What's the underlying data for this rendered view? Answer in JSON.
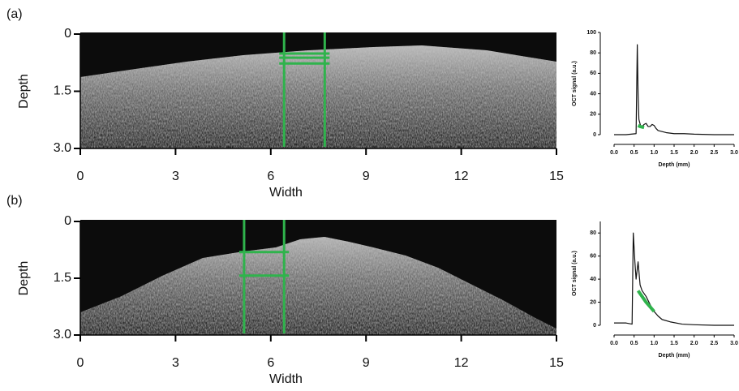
{
  "chart_data": [
    {
      "type": "image",
      "panel_label": "(a)",
      "xlabel": "Width",
      "ylabel": "Depth",
      "xlim": [
        0,
        15
      ],
      "xticks": [
        0,
        3,
        6,
        9,
        12,
        15
      ],
      "ylim": [
        0,
        3
      ],
      "y_inverted": true,
      "yticks": [
        0,
        1.5,
        {
          "value": 3,
          "label": "3.0"
        }
      ],
      "line_color": "#2fb34c",
      "vertical_lines": [
        6.42,
        7.7
      ],
      "horizontal_lines": [
        0.51,
        0.62,
        0.77
      ]
    },
    {
      "type": "line",
      "xlabel": "Depth (mm)",
      "ylabel": "OCT signal (a.u.)",
      "xlim": [
        0,
        3
      ],
      "xticks": [
        {
          "value": 0,
          "label": "0.0"
        },
        0.5,
        {
          "value": 1,
          "label": "1.0"
        },
        1.5,
        {
          "value": 2,
          "label": "2.0"
        },
        2.5,
        {
          "value": 3,
          "label": "3.0"
        }
      ],
      "ylim": [
        0,
        100
      ],
      "yticks": [
        0,
        20,
        40,
        60,
        80,
        100
      ],
      "series": [
        {
          "color": "#111111",
          "x": [
            0,
            0.3,
            0.55,
            0.58,
            0.6,
            0.62,
            0.66,
            0.7,
            0.75,
            0.8,
            0.85,
            0.9,
            0.95,
            1.0,
            1.05,
            1.1,
            1.2,
            1.3,
            1.5,
            1.75,
            2.0,
            2.5,
            3.0
          ],
          "values": [
            0,
            0,
            1,
            88,
            40,
            15,
            9,
            8,
            10,
            11,
            8,
            8,
            10,
            9,
            6,
            4,
            3,
            2,
            1,
            1,
            0.5,
            0,
            0
          ]
        },
        {
          "color": "#2fb34c",
          "x": [
            0.6,
            0.65,
            0.7,
            0.75
          ],
          "values": [
            9,
            8,
            7.5,
            7
          ]
        }
      ]
    },
    {
      "type": "image",
      "panel_label": "(b)",
      "xlabel": "Width",
      "ylabel": "Depth",
      "xlim": [
        0,
        15
      ],
      "xticks": [
        0,
        3,
        6,
        9,
        12,
        15
      ],
      "ylim": [
        0,
        3
      ],
      "y_inverted": true,
      "yticks": [
        0,
        1.5,
        {
          "value": 3,
          "label": "3.0"
        }
      ],
      "line_color": "#2fb34c",
      "vertical_lines": [
        5.16,
        6.42
      ],
      "horizontal_lines": [
        0.81,
        1.43
      ]
    },
    {
      "type": "line",
      "xlabel": "Depth (mm)",
      "ylabel": "OCT signal (a.u.)",
      "xlim": [
        0,
        3
      ],
      "xticks": [
        {
          "value": 0,
          "label": "0.0"
        },
        0.5,
        {
          "value": 1,
          "label": "1.0"
        },
        1.5,
        {
          "value": 2,
          "label": "2.0"
        },
        2.5,
        {
          "value": 3,
          "label": "3.0"
        }
      ],
      "ylim": [
        0,
        90
      ],
      "yticks": [
        0,
        20,
        40,
        60,
        80
      ],
      "series": [
        {
          "color": "#111111",
          "x": [
            0,
            0.3,
            0.45,
            0.48,
            0.52,
            0.55,
            0.6,
            0.65,
            0.7,
            0.8,
            0.9,
            1.0,
            1.1,
            1.2,
            1.4,
            1.7,
            2.0,
            2.5,
            3.0
          ],
          "values": [
            2,
            2,
            1,
            80,
            55,
            40,
            55,
            35,
            30,
            25,
            18,
            12,
            8,
            5,
            3,
            1,
            0.5,
            0,
            0
          ]
        },
        {
          "color": "#2fb34c",
          "x": [
            0.6,
            0.7,
            0.8,
            0.9,
            1.0
          ],
          "values": [
            30,
            25,
            20,
            16,
            12
          ]
        }
      ]
    }
  ]
}
